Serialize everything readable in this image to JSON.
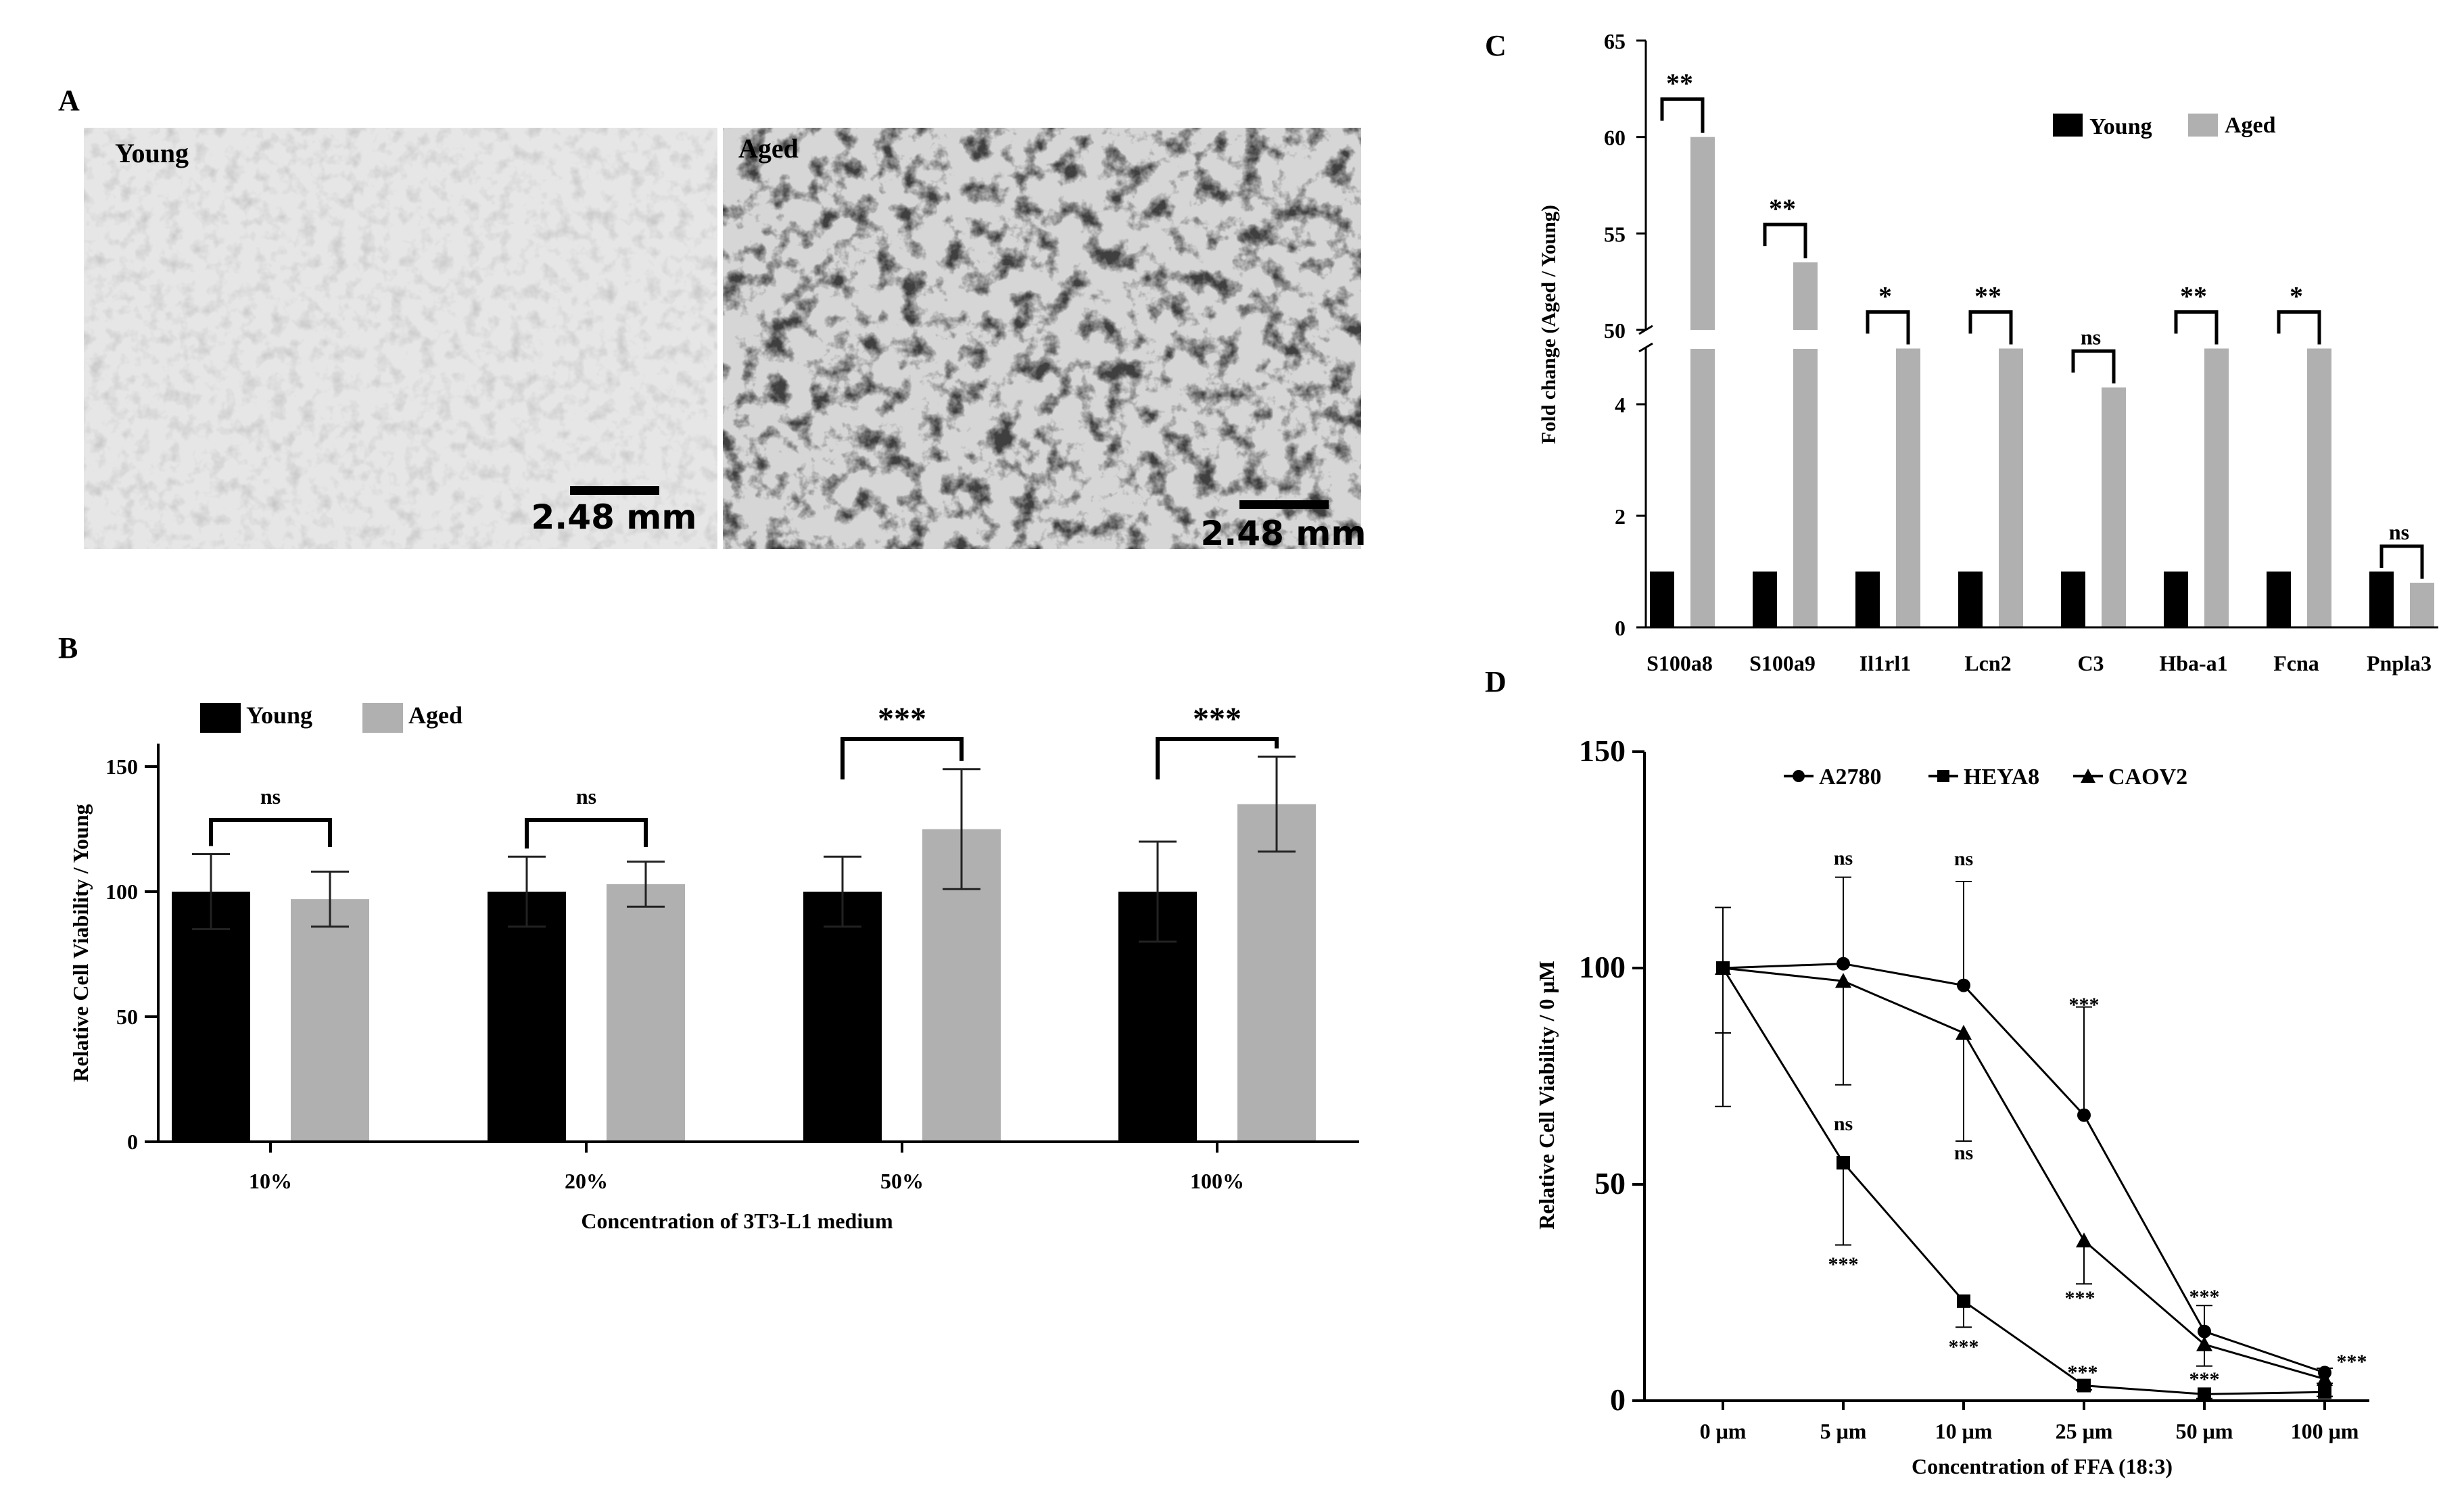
{
  "panel_labels": {
    "a": "A",
    "b": "B",
    "c": "C",
    "d": "D"
  },
  "panel_a": {
    "young_label": "Young",
    "aged_label": "Aged",
    "scale_bar_text": "2.48 mm"
  },
  "colors": {
    "young": "#000000",
    "aged": "#b0b0b0"
  },
  "chart_data": [
    {
      "panel": "B",
      "type": "bar",
      "xlabel": "Concentration of 3T3-L1 medium",
      "ylabel": "Relative Cell Viability / Young",
      "ylim": [
        0,
        160
      ],
      "yticks": [
        0,
        50,
        100,
        150
      ],
      "categories": [
        "10%",
        "20%",
        "50%",
        "100%"
      ],
      "series": [
        {
          "name": "Young",
          "values": [
            100,
            100,
            100,
            100
          ],
          "errors": [
            15,
            14,
            14,
            20
          ]
        },
        {
          "name": "Aged",
          "values": [
            97,
            103,
            125,
            135
          ],
          "errors": [
            11,
            9,
            24,
            19
          ]
        }
      ],
      "significance": [
        "ns",
        "ns",
        "***",
        "***"
      ],
      "legend": "top-left"
    },
    {
      "panel": "C",
      "type": "bar",
      "ylabel": "Fold change (Aged / Young)",
      "broken_axis": {
        "lower_range": [
          0,
          5
        ],
        "upper_range": [
          50,
          65
        ]
      },
      "yticks": [
        0,
        2,
        4,
        50,
        55,
        60,
        65
      ],
      "categories": [
        "S100a8",
        "S100a9",
        "Il1rl1",
        "Lcn2",
        "C3",
        "Hba-a1",
        "Fcna",
        "Pnpla3"
      ],
      "series": [
        {
          "name": "Young",
          "values": [
            1,
            1,
            1,
            1,
            1,
            1,
            1,
            1
          ]
        },
        {
          "name": "Aged",
          "values": [
            60,
            53.5,
            5,
            5,
            4.3,
            5,
            5,
            0.8
          ]
        }
      ],
      "significance": [
        "**",
        "**",
        "*",
        "**",
        "ns",
        "**",
        "*",
        "ns"
      ],
      "legend": "top-right"
    },
    {
      "panel": "D",
      "type": "line",
      "xlabel": "Concentration of FFA (18:3)",
      "ylabel": "Relative Cell Viability / 0 μM",
      "ylim": [
        0,
        150
      ],
      "yticks": [
        0,
        50,
        100,
        150
      ],
      "categories": [
        "0 μm",
        "5 μm",
        "10 μm",
        "25 μm",
        "50 μm",
        "100 μm"
      ],
      "series": [
        {
          "name": "A2780",
          "marker": "circle",
          "values": [
            100,
            101,
            96,
            66,
            16,
            6.5
          ],
          "errors": [
            14,
            20,
            24,
            25,
            6,
            1
          ]
        },
        {
          "name": "HEYA8",
          "marker": "square",
          "values": [
            100,
            55,
            23,
            3.5,
            1.5,
            2
          ],
          "errors": [
            32,
            19,
            6,
            1,
            1,
            1
          ]
        },
        {
          "name": "CAOV2",
          "marker": "triangle",
          "values": [
            100,
            97,
            85,
            37,
            13,
            5
          ],
          "errors": [
            15,
            24,
            25,
            10,
            5,
            1
          ]
        }
      ],
      "annotations": [
        {
          "x": "5 μm",
          "upper": "ns",
          "middle": "ns",
          "lower": "***"
        },
        {
          "x": "10 μm",
          "upper": "ns",
          "middle": "ns",
          "lower": "***"
        },
        {
          "x": "25 μm",
          "upper": "***",
          "lower": "***"
        },
        {
          "x": "50 μm",
          "upper": "***",
          "lower": "***"
        },
        {
          "x": "100 μm",
          "upper": "***"
        }
      ],
      "markers_labels": [
        {
          "x": "25 μm",
          "lines": [
            "***",
            "***"
          ]
        },
        {
          "x": "50 μm",
          "lines": [
            "***",
            "***"
          ]
        },
        {
          "x": "100 μm",
          "lines": [
            "***"
          ]
        }
      ],
      "legend": "top"
    }
  ]
}
